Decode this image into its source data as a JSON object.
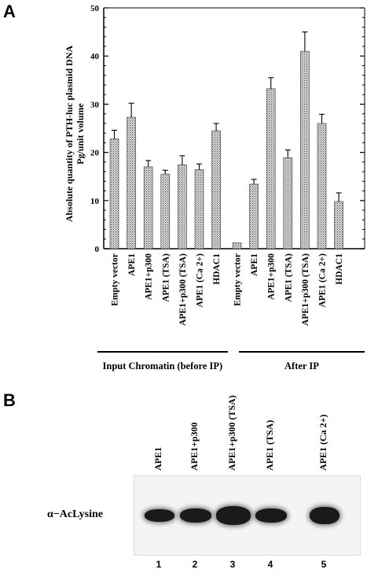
{
  "panel_a": {
    "letter": "A"
  },
  "panel_b": {
    "letter": "B",
    "blot_label": "α−AcLysine",
    "lanes": [
      {
        "label": "APE1",
        "number": "1"
      },
      {
        "label": "APE1+p300",
        "number": "2"
      },
      {
        "label": "APE1+p300 (TSA)",
        "number": "3"
      },
      {
        "label": "APE1 (TSA)",
        "number": "4"
      },
      {
        "label": "APE1 (Ca 2+)",
        "number": "5"
      }
    ]
  },
  "chart_data": {
    "type": "bar",
    "ylabel_line1": "Absolute quantity of PTH-luc plasmid DNA",
    "ylabel_line2": "Pg/unit volume",
    "ylim": [
      0,
      50
    ],
    "yticks": [
      "0",
      "10",
      "20",
      "30",
      "40",
      "50"
    ],
    "groups": [
      {
        "label": "Input Chromatin (before IP)",
        "categories": [
          "Empty vector",
          "APE1",
          "APE1+p300",
          "APE1 (TSA)",
          "APE1+p300 (TSA)",
          "APE1 (Ca 2+)",
          "HDAC1"
        ],
        "values": [
          22.8,
          27.3,
          17.0,
          15.5,
          17.4,
          16.4,
          24.5
        ],
        "errors": [
          1.8,
          2.9,
          1.3,
          0.8,
          1.9,
          1.2,
          1.5
        ]
      },
      {
        "label": "After IP",
        "categories": [
          "Empty vector",
          "APE1",
          "APE1+p300",
          "APE1 (TSA)",
          "APE1+p300 (TSA)",
          "APE1 (Ca 2+)",
          "HDAC1"
        ],
        "values": [
          1.2,
          13.4,
          33.2,
          18.9,
          41.0,
          26.0,
          9.8
        ],
        "errors": [
          0,
          1.0,
          2.3,
          1.6,
          4.0,
          1.9,
          1.8
        ]
      }
    ]
  }
}
